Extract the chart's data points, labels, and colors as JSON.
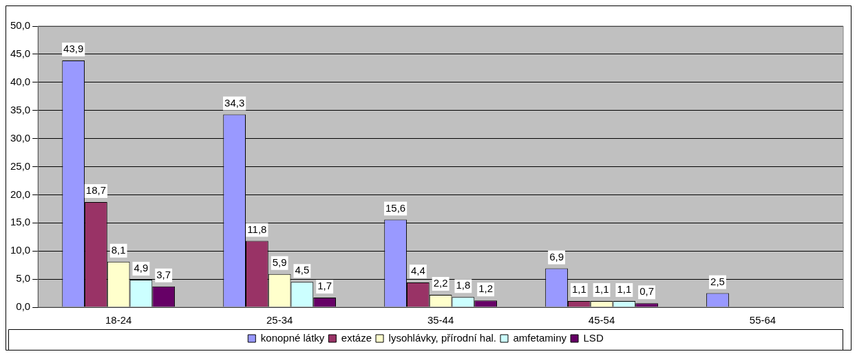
{
  "chart_data": {
    "type": "bar",
    "categories": [
      "18-24",
      "25-34",
      "35-44",
      "45-54",
      "55-64"
    ],
    "series": [
      {
        "name": "konopné látky",
        "color": "#9999ff",
        "values": [
          43.9,
          34.3,
          15.6,
          6.9,
          2.5
        ],
        "value_labels": [
          "43,9",
          "34,3",
          "15,6",
          "6,9",
          "2,5"
        ]
      },
      {
        "name": "extáze",
        "color": "#993366",
        "values": [
          18.7,
          11.8,
          4.4,
          1.1,
          null
        ],
        "value_labels": [
          "18,7",
          "11,8",
          "4,4",
          "1,1",
          null
        ]
      },
      {
        "name": "lysohlávky, přírodní hal.",
        "color": "#ffffcc",
        "values": [
          8.1,
          5.9,
          2.2,
          1.1,
          null
        ],
        "value_labels": [
          "8,1",
          "5,9",
          "2,2",
          "1,1",
          null
        ]
      },
      {
        "name": "amfetaminy",
        "color": "#ccffff",
        "values": [
          4.9,
          4.5,
          1.8,
          1.1,
          null
        ],
        "value_labels": [
          "4,9",
          "4,5",
          "1,8",
          "1,1",
          null
        ]
      },
      {
        "name": "LSD",
        "color": "#660066",
        "values": [
          3.7,
          1.7,
          1.2,
          0.7,
          null
        ],
        "value_labels": [
          "3,7",
          "1,7",
          "1,2",
          "0,7",
          null
        ]
      }
    ],
    "ylim": [
      0,
      50
    ],
    "yticks": [
      {
        "value": 0,
        "label": "0,0"
      },
      {
        "value": 5,
        "label": "5,0"
      },
      {
        "value": 10,
        "label": "10,0"
      },
      {
        "value": 15,
        "label": "15,0"
      },
      {
        "value": 20,
        "label": "20,0"
      },
      {
        "value": 25,
        "label": "25,0"
      },
      {
        "value": 30,
        "label": "30,0"
      },
      {
        "value": 35,
        "label": "35,0"
      },
      {
        "value": 40,
        "label": "40,0"
      },
      {
        "value": 45,
        "label": "45,0"
      },
      {
        "value": 50,
        "label": "50,0"
      }
    ],
    "grid": "y",
    "legend": "bottom"
  }
}
